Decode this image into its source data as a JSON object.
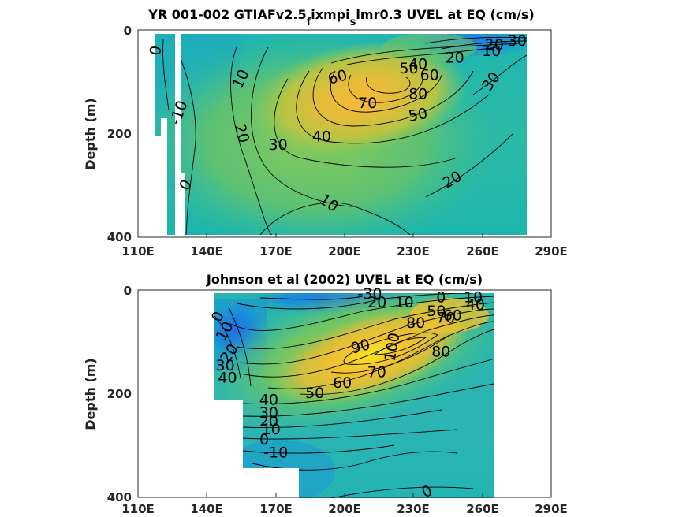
{
  "chart_data": [
    {
      "type": "heatmap",
      "title": "YR 001-002 GTIAFv2.5",
      "title_parts": [
        "YR 001-002 GTIAFv2.5",
        "f",
        "ixmpi",
        "s",
        "lmr0.3 UVEL at EQ (cm/s)"
      ],
      "ylabel": "Depth (m)",
      "xlabel": "",
      "x_ticks": [
        "110E",
        "140E",
        "170E",
        "200E",
        "230E",
        "260E",
        "290E"
      ],
      "y_ticks": [
        "0",
        "200",
        "400"
      ],
      "xlim": [
        110,
        290
      ],
      "ylim": [
        0,
        400
      ],
      "y_reversed": true,
      "colormap": "parula",
      "core": {
        "lon": 215,
        "depth": 110,
        "value": 85
      },
      "contour_labels": [
        {
          "text": "0",
          "lon": 118,
          "depth": 40,
          "angle": -80
        },
        {
          "text": "-10",
          "lon": 128,
          "depth": 160,
          "angle": -70
        },
        {
          "text": "0",
          "lon": 131,
          "depth": 300,
          "angle": -60
        },
        {
          "text": "10",
          "lon": 155,
          "depth": 95,
          "angle": -65
        },
        {
          "text": "20",
          "lon": 155,
          "depth": 200,
          "angle": 75
        },
        {
          "text": "30",
          "lon": 171,
          "depth": 223,
          "angle": 0
        },
        {
          "text": "40",
          "lon": 190,
          "depth": 207,
          "angle": 0
        },
        {
          "text": "60",
          "lon": 197,
          "depth": 92,
          "angle": -15
        },
        {
          "text": "70",
          "lon": 210,
          "depth": 142,
          "angle": 0
        },
        {
          "text": "80",
          "lon": 232,
          "depth": 125,
          "angle": 0
        },
        {
          "text": "50",
          "lon": 232,
          "depth": 165,
          "angle": -10
        },
        {
          "text": "50",
          "lon": 228,
          "depth": 75,
          "angle": 0
        },
        {
          "text": "40",
          "lon": 232,
          "depth": 67,
          "angle": 0
        },
        {
          "text": "60",
          "lon": 237,
          "depth": 88,
          "angle": 0
        },
        {
          "text": "20",
          "lon": 248,
          "depth": 55,
          "angle": 0
        },
        {
          "text": "-20",
          "lon": 264,
          "depth": 30,
          "angle": 0
        },
        {
          "text": "-30",
          "lon": 274,
          "depth": 22,
          "angle": 0
        },
        {
          "text": "10",
          "lon": 264,
          "depth": 42,
          "angle": 0
        },
        {
          "text": "30",
          "lon": 264,
          "depth": 100,
          "angle": -55
        },
        {
          "text": "20",
          "lon": 247,
          "depth": 290,
          "angle": -30
        },
        {
          "text": "10",
          "lon": 193,
          "depth": 335,
          "angle": 35
        }
      ]
    },
    {
      "type": "heatmap",
      "title": "Johnson et al (2002) UVEL at EQ (cm/s)",
      "ylabel": "Depth (m)",
      "xlabel": "",
      "x_ticks": [
        "110E",
        "140E",
        "170E",
        "200E",
        "230E",
        "260E",
        "290E"
      ],
      "y_ticks": [
        "0",
        "200",
        "400"
      ],
      "xlim": [
        110,
        290
      ],
      "ylim": [
        0,
        400
      ],
      "y_reversed": true,
      "colormap": "parula",
      "core": {
        "lon": 222,
        "depth": 120,
        "value": 100
      },
      "contour_labels": [
        {
          "text": "-30",
          "lon": 211,
          "depth": 8,
          "angle": 0
        },
        {
          "text": "-20",
          "lon": 213,
          "depth": 25,
          "angle": 0
        },
        {
          "text": "10",
          "lon": 226,
          "depth": 25,
          "angle": 0
        },
        {
          "text": "0",
          "lon": 242,
          "depth": 15,
          "angle": 0
        },
        {
          "text": "10",
          "lon": 256,
          "depth": 15,
          "angle": 0
        },
        {
          "text": "50",
          "lon": 240,
          "depth": 42,
          "angle": 0
        },
        {
          "text": "60",
          "lon": 247,
          "depth": 50,
          "angle": 0
        },
        {
          "text": "40",
          "lon": 257,
          "depth": 30,
          "angle": 0
        },
        {
          "text": "80",
          "lon": 231,
          "depth": 65,
          "angle": 0
        },
        {
          "text": "70",
          "lon": 244,
          "depth": 55,
          "angle": 0
        },
        {
          "text": "0",
          "lon": 145,
          "depth": 52,
          "angle": -65
        },
        {
          "text": "10",
          "lon": 148,
          "depth": 80,
          "angle": -60
        },
        {
          "text": "20",
          "lon": 150,
          "depth": 123,
          "angle": -55
        },
        {
          "text": "30",
          "lon": 148,
          "depth": 147,
          "angle": 0
        },
        {
          "text": "40",
          "lon": 149,
          "depth": 170,
          "angle": 0
        },
        {
          "text": "90",
          "lon": 207,
          "depth": 110,
          "angle": -15
        },
        {
          "text": "100",
          "lon": 221,
          "depth": 110,
          "angle": -80
        },
        {
          "text": "80",
          "lon": 242,
          "depth": 120,
          "angle": 0
        },
        {
          "text": "70",
          "lon": 214,
          "depth": 160,
          "angle": 0
        },
        {
          "text": "60",
          "lon": 199,
          "depth": 180,
          "angle": 0
        },
        {
          "text": "50",
          "lon": 187,
          "depth": 200,
          "angle": 0
        },
        {
          "text": "40",
          "lon": 167,
          "depth": 213,
          "angle": 0
        },
        {
          "text": "30",
          "lon": 167,
          "depth": 238,
          "angle": 0
        },
        {
          "text": "20",
          "lon": 167,
          "depth": 255,
          "angle": 0
        },
        {
          "text": "10",
          "lon": 168,
          "depth": 270,
          "angle": 0
        },
        {
          "text": "0",
          "lon": 165,
          "depth": 290,
          "angle": 0
        },
        {
          "text": "-10",
          "lon": 170,
          "depth": 315,
          "angle": 0
        },
        {
          "text": "0",
          "lon": 236,
          "depth": 390,
          "angle": -25
        }
      ]
    }
  ]
}
